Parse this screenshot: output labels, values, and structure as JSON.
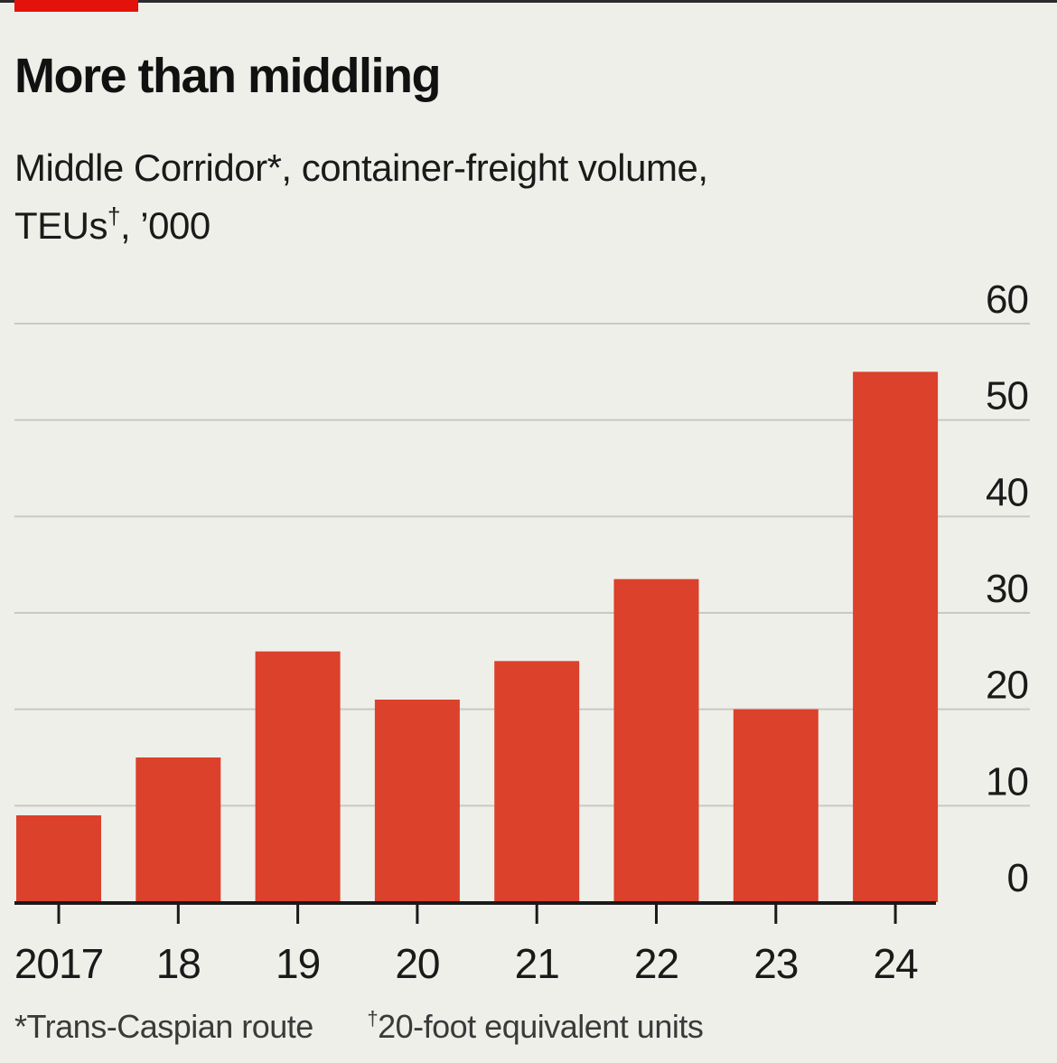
{
  "title": "More than middling",
  "subtitle": {
    "line1": "Middle Corridor*, container-freight volume,",
    "line2_a": "TEUs",
    "line2_mark": "†",
    "line2_b": ", ’000"
  },
  "footnotes": [
    {
      "mark": "*",
      "text": "Trans-Caspian route"
    },
    {
      "mark": "†",
      "text": "20-foot equivalent units"
    }
  ],
  "colors": {
    "bar": "#db412b",
    "brand": "#e3120b",
    "grid": "#c9c9c4",
    "axis": "#1a1a1a",
    "background": "#efefea"
  },
  "chart_data": {
    "type": "bar",
    "categories": [
      "2017",
      "18",
      "19",
      "20",
      "21",
      "22",
      "23",
      "24"
    ],
    "values": [
      9,
      15,
      26,
      21,
      25,
      33.5,
      20,
      55
    ],
    "ylim": [
      0,
      60
    ],
    "yticks": [
      0,
      10,
      20,
      30,
      40,
      50,
      60
    ],
    "y_axis_side": "right",
    "grid": true
  }
}
